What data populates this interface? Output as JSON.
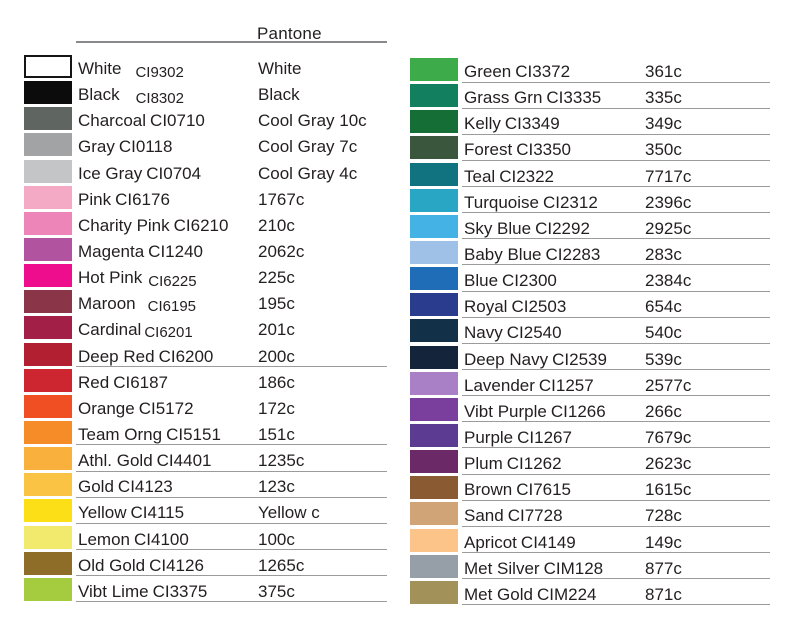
{
  "header": {
    "title": "Pantone"
  },
  "colors": {
    "text": "#231f20",
    "row_rule": "#9b9b9b",
    "header_rule": "#87898c",
    "white_swatch_border": "#151515"
  },
  "chart_data": {
    "type": "table",
    "title": "Pantone",
    "description": "Color reference chart mapping ink color names and CI codes to Pantone codes",
    "columns": [
      {
        "rows": [
          {
            "name": "White",
            "code": "CI9302",
            "pantone": "White",
            "hex": "#ffffff",
            "border": true,
            "underline": false,
            "code_gap": 14,
            "code_dy": 3
          },
          {
            "name": "Black",
            "code": "CI8302",
            "pantone": "Black",
            "hex": "#0c0c0c",
            "underline": false,
            "code_gap": 16,
            "code_dy": 3
          },
          {
            "name": "Charcoal",
            "code": "CI0710",
            "pantone": "Cool Gray 10c",
            "hex": "#5f6662",
            "underline": false
          },
          {
            "name": "Gray",
            "code": "CI0118",
            "pantone": "Cool Gray 7c",
            "hex": "#a1a3a5",
            "underline": false
          },
          {
            "name": "Ice Gray",
            "code": "CI0704",
            "pantone": "Cool Gray 4c",
            "hex": "#c4c5c7",
            "underline": false
          },
          {
            "name": "Pink",
            "code": "CI6176",
            "pantone": "1767c",
            "hex": "#f4aac5",
            "underline": false
          },
          {
            "name": "Charity Pink",
            "code": "CI6210",
            "pantone": "210c",
            "hex": "#ee85b8",
            "underline": false
          },
          {
            "name": "Magenta",
            "code": "CI1240",
            "pantone": "2062c",
            "hex": "#b1539e",
            "underline": false
          },
          {
            "name": "Hot Pink",
            "code": "CI6225",
            "pantone": "225c",
            "hex": "#ee0d8c",
            "underline": false,
            "code_gap": 6,
            "code_dy": 3
          },
          {
            "name": "Maroon",
            "code": "CI6195",
            "pantone": "195c",
            "hex": "#8b3648",
            "underline": false,
            "code_gap": 12,
            "code_dy": 2
          },
          {
            "name": "Cardinal",
            "code": "CI6201",
            "pantone": "201c",
            "hex": "#a21f47",
            "underline": false,
            "code_gap": 3,
            "code_dy": 2
          },
          {
            "name": "Deep Red",
            "code": "CI6200",
            "pantone": "200c",
            "hex": "#b21f31",
            "underline": true
          },
          {
            "name": "Red",
            "code": "CI6187",
            "pantone": "186c",
            "hex": "#ce2630",
            "underline": false
          },
          {
            "name": "Orange",
            "code": "CI5172",
            "pantone": "172c",
            "hex": "#f04e23",
            "underline": false
          },
          {
            "name": "Team Orng",
            "code": "CI5151",
            "pantone": "151c",
            "hex": "#f68c28",
            "underline": true
          },
          {
            "name": "Athl. Gold",
            "code": "CI4401",
            "pantone": "1235c",
            "hex": "#fab03c",
            "underline": true
          },
          {
            "name": "Gold",
            "code": "CI4123",
            "pantone": "123c",
            "hex": "#fbc343",
            "underline": true
          },
          {
            "name": "Yellow",
            "code": "CI4115",
            "pantone": "Yellow c",
            "hex": "#fcdf17",
            "underline": true
          },
          {
            "name": "Lemon",
            "code": "CI4100",
            "pantone": "100c",
            "hex": "#f2ea6c",
            "underline": true
          },
          {
            "name": "Old Gold",
            "code": "CI4126",
            "pantone": "1265c",
            "hex": "#8e6d28",
            "underline": true
          },
          {
            "name": "Vibt Lime",
            "code": "CI3375",
            "pantone": "375c",
            "hex": "#a5cc3e",
            "underline": true
          }
        ]
      },
      {
        "rows": [
          {
            "name": "Green",
            "code": "CI3372",
            "pantone": "361c",
            "hex": "#3dab49",
            "underline": true
          },
          {
            "name": "Grass Grn",
            "code": "CI3335",
            "pantone": "335c",
            "hex": "#12805f",
            "underline": true
          },
          {
            "name": "Kelly",
            "code": "CI3349",
            "pantone": "349c",
            "hex": "#156e36",
            "underline": true
          },
          {
            "name": "Forest",
            "code": "CI3350",
            "pantone": "350c",
            "hex": "#3a573d",
            "underline": true
          },
          {
            "name": "Teal",
            "code": "CI2322",
            "pantone": "7717c",
            "hex": "#117380",
            "underline": true
          },
          {
            "name": "Turquoise",
            "code": "CI2312",
            "pantone": "2396c",
            "hex": "#28a6c3",
            "underline": true
          },
          {
            "name": "Sky Blue",
            "code": "CI2292",
            "pantone": "2925c",
            "hex": "#44b2e5",
            "underline": true
          },
          {
            "name": "Baby Blue",
            "code": "CI2283",
            "pantone": "283c",
            "hex": "#9fc1e8",
            "underline": true
          },
          {
            "name": "Blue",
            "code": "CI2300",
            "pantone": "2384c",
            "hex": "#1e6db6",
            "underline": true
          },
          {
            "name": "Royal",
            "code": "CI2503",
            "pantone": "654c",
            "hex": "#293c8e",
            "underline": true
          },
          {
            "name": "Navy",
            "code": "CI2540",
            "pantone": "540c",
            "hex": "#123149",
            "underline": true
          },
          {
            "name": "Deep Navy",
            "code": "CI2539",
            "pantone": "539c",
            "hex": "#14243a",
            "underline": true
          },
          {
            "name": "Lavender",
            "code": "CI1257",
            "pantone": "2577c",
            "hex": "#a97fc5",
            "underline": true
          },
          {
            "name": "Vibt Purple",
            "code": "CI1266",
            "pantone": "266c",
            "hex": "#7a3f9c",
            "underline": true
          },
          {
            "name": "Purple",
            "code": "CI1267",
            "pantone": "7679c",
            "hex": "#5c3c93",
            "underline": true
          },
          {
            "name": "Plum",
            "code": "CI1262",
            "pantone": "2623c",
            "hex": "#6b2a67",
            "underline": true
          },
          {
            "name": "Brown",
            "code": "CI7615",
            "pantone": "1615c",
            "hex": "#8a5a33",
            "underline": true
          },
          {
            "name": "Sand",
            "code": "CI7728",
            "pantone": "728c",
            "hex": "#d1a478",
            "underline": true
          },
          {
            "name": "Apricot",
            "code": "CI4149",
            "pantone": "149c",
            "hex": "#fcc489",
            "underline": true
          },
          {
            "name": "Met Silver",
            "code": "CIM128",
            "pantone": "877c",
            "hex": "#969fa8",
            "underline": true
          },
          {
            "name": "Met Gold",
            "code": "CIM224",
            "pantone": "871c",
            "hex": "#a2925a",
            "underline": true
          }
        ]
      }
    ]
  }
}
